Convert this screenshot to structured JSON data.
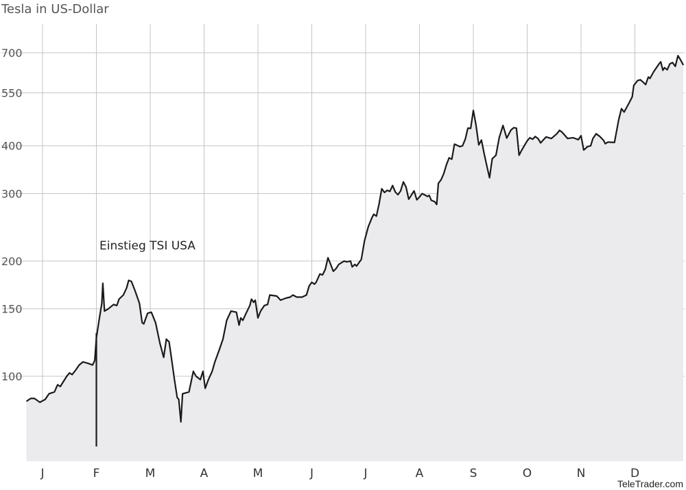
{
  "chart_data": {
    "type": "area",
    "title": "Tesla in US-Dollar",
    "yscale": "log",
    "ylim": [
      65,
      800
    ],
    "xlim": [
      -0.3,
      11.65
    ],
    "grid": true,
    "source": "TeleTrader.com",
    "y_ticks": [
      100,
      150,
      200,
      300,
      400,
      550,
      700
    ],
    "x_ticks": [
      {
        "label": "J",
        "pos": 0
      },
      {
        "label": "F",
        "pos": 1
      },
      {
        "label": "M",
        "pos": 2
      },
      {
        "label": "A",
        "pos": 3
      },
      {
        "label": "M",
        "pos": 4
      },
      {
        "label": "J",
        "pos": 5
      },
      {
        "label": "J",
        "pos": 6
      },
      {
        "label": "A",
        "pos": 7
      },
      {
        "label": "S",
        "pos": 8
      },
      {
        "label": "O",
        "pos": 9
      },
      {
        "label": "N",
        "pos": 10
      },
      {
        "label": "D",
        "pos": 11
      }
    ],
    "series": [
      {
        "name": "",
        "color": "#1a1a1a",
        "fill": "#ebebee",
        "points": [
          [
            -0.3,
            86
          ],
          [
            -0.22,
            87.5
          ],
          [
            -0.15,
            87.5
          ],
          [
            -0.05,
            85.5
          ],
          [
            0.05,
            87
          ],
          [
            0.12,
            90
          ],
          [
            0.22,
            91
          ],
          [
            0.28,
            95
          ],
          [
            0.33,
            94
          ],
          [
            0.45,
            100
          ],
          [
            0.5,
            102
          ],
          [
            0.55,
            101
          ],
          [
            0.62,
            104
          ],
          [
            0.68,
            107
          ],
          [
            0.75,
            109
          ],
          [
            0.85,
            108
          ],
          [
            0.93,
            107
          ],
          [
            0.97,
            110
          ],
          [
            1.0,
            126
          ],
          [
            1.05,
            140
          ],
          [
            1.1,
            155
          ],
          [
            1.12,
            175
          ],
          [
            1.15,
            148
          ],
          [
            1.22,
            150
          ],
          [
            1.32,
            154
          ],
          [
            1.38,
            153
          ],
          [
            1.42,
            159
          ],
          [
            1.5,
            163
          ],
          [
            1.56,
            170
          ],
          [
            1.6,
            178
          ],
          [
            1.65,
            177
          ],
          [
            1.72,
            167
          ],
          [
            1.8,
            155
          ],
          [
            1.85,
            138
          ],
          [
            1.88,
            137
          ],
          [
            1.95,
            146
          ],
          [
            2.02,
            147
          ],
          [
            2.1,
            138
          ],
          [
            2.18,
            122
          ],
          [
            2.25,
            112
          ],
          [
            2.3,
            125
          ],
          [
            2.35,
            123
          ],
          [
            2.4,
            110
          ],
          [
            2.45,
            98
          ],
          [
            2.5,
            88
          ],
          [
            2.53,
            87
          ],
          [
            2.57,
            76
          ],
          [
            2.6,
            90
          ],
          [
            2.72,
            91
          ],
          [
            2.8,
            103
          ],
          [
            2.85,
            100
          ],
          [
            2.93,
            98
          ],
          [
            2.98,
            103
          ],
          [
            3.02,
            93
          ],
          [
            3.08,
            98
          ],
          [
            3.15,
            103
          ],
          [
            3.2,
            109
          ],
          [
            3.28,
            117
          ],
          [
            3.35,
            125
          ],
          [
            3.42,
            140
          ],
          [
            3.5,
            148
          ],
          [
            3.6,
            147
          ],
          [
            3.65,
            136
          ],
          [
            3.68,
            142
          ],
          [
            3.72,
            140
          ],
          [
            3.78,
            146
          ],
          [
            3.85,
            153
          ],
          [
            3.88,
            159
          ],
          [
            3.92,
            156
          ],
          [
            3.95,
            158
          ],
          [
            4.0,
            142
          ],
          [
            4.05,
            148
          ],
          [
            4.12,
            153
          ],
          [
            4.18,
            154
          ],
          [
            4.22,
            163
          ],
          [
            4.35,
            162
          ],
          [
            4.42,
            158
          ],
          [
            4.52,
            160
          ],
          [
            4.6,
            161
          ],
          [
            4.65,
            163
          ],
          [
            4.72,
            161
          ],
          [
            4.82,
            161
          ],
          [
            4.9,
            163
          ],
          [
            4.95,
            172
          ],
          [
            5.0,
            176
          ],
          [
            5.05,
            174
          ],
          [
            5.08,
            176
          ],
          [
            5.15,
            185
          ],
          [
            5.2,
            184
          ],
          [
            5.25,
            190
          ],
          [
            5.3,
            204
          ],
          [
            5.35,
            196
          ],
          [
            5.4,
            188
          ],
          [
            5.45,
            191
          ],
          [
            5.5,
            196
          ],
          [
            5.6,
            200
          ],
          [
            5.65,
            199
          ],
          [
            5.72,
            200
          ],
          [
            5.75,
            193
          ],
          [
            5.8,
            196
          ],
          [
            5.83,
            194
          ],
          [
            5.92,
            202
          ],
          [
            5.98,
            226
          ],
          [
            6.05,
            246
          ],
          [
            6.12,
            260
          ],
          [
            6.15,
            265
          ],
          [
            6.2,
            262
          ],
          [
            6.25,
            282
          ],
          [
            6.3,
            309
          ],
          [
            6.35,
            302
          ],
          [
            6.4,
            306
          ],
          [
            6.45,
            304
          ],
          [
            6.5,
            315
          ],
          [
            6.55,
            303
          ],
          [
            6.6,
            298
          ],
          [
            6.65,
            305
          ],
          [
            6.7,
            322
          ],
          [
            6.75,
            312
          ],
          [
            6.8,
            290
          ],
          [
            6.9,
            305
          ],
          [
            6.95,
            289
          ],
          [
            7.0,
            294
          ],
          [
            7.05,
            300
          ],
          [
            7.15,
            295
          ],
          [
            7.18,
            297
          ],
          [
            7.22,
            288
          ],
          [
            7.28,
            286
          ],
          [
            7.32,
            281
          ],
          [
            7.35,
            319
          ],
          [
            7.4,
            326
          ],
          [
            7.45,
            338
          ],
          [
            7.5,
            357
          ],
          [
            7.55,
            372
          ],
          [
            7.6,
            369
          ],
          [
            7.65,
            404
          ],
          [
            7.75,
            398
          ],
          [
            7.8,
            400
          ],
          [
            7.85,
            416
          ],
          [
            7.9,
            445
          ],
          [
            7.95,
            444
          ],
          [
            8.0,
            495
          ],
          [
            8.05,
            453
          ],
          [
            8.1,
            402
          ],
          [
            8.15,
            414
          ],
          [
            8.2,
            382
          ],
          [
            8.25,
            355
          ],
          [
            8.3,
            330
          ],
          [
            8.35,
            370
          ],
          [
            8.42,
            378
          ],
          [
            8.48,
            420
          ],
          [
            8.55,
            452
          ],
          [
            8.62,
            419
          ],
          [
            8.7,
            440
          ],
          [
            8.75,
            446
          ],
          [
            8.8,
            445
          ],
          [
            8.85,
            378
          ],
          [
            8.9,
            390
          ],
          [
            9.0,
            412
          ],
          [
            9.05,
            420
          ],
          [
            9.1,
            416
          ],
          [
            9.15,
            423
          ],
          [
            9.2,
            418
          ],
          [
            9.25,
            407
          ],
          [
            9.35,
            422
          ],
          [
            9.45,
            418
          ],
          [
            9.55,
            430
          ],
          [
            9.6,
            439
          ],
          [
            9.65,
            434
          ],
          [
            9.75,
            418
          ],
          [
            9.85,
            420
          ],
          [
            9.95,
            415
          ],
          [
            10.0,
            425
          ],
          [
            10.05,
            390
          ],
          [
            10.12,
            398
          ],
          [
            10.18,
            400
          ],
          [
            10.22,
            418
          ],
          [
            10.28,
            430
          ],
          [
            10.35,
            423
          ],
          [
            10.42,
            413
          ],
          [
            10.45,
            405
          ],
          [
            10.5,
            409
          ],
          [
            10.62,
            408
          ],
          [
            10.7,
            468
          ],
          [
            10.75,
            500
          ],
          [
            10.8,
            490
          ],
          [
            10.9,
            520
          ],
          [
            10.95,
            537
          ],
          [
            10.98,
            575
          ],
          [
            11.05,
            592
          ],
          [
            11.1,
            595
          ],
          [
            11.15,
            587
          ],
          [
            11.2,
            578
          ],
          [
            11.25,
            605
          ],
          [
            11.28,
            600
          ],
          [
            11.35,
            625
          ],
          [
            11.4,
            640
          ],
          [
            11.45,
            655
          ],
          [
            11.48,
            663
          ],
          [
            11.52,
            630
          ],
          [
            11.55,
            640
          ],
          [
            11.6,
            632
          ],
          [
            11.65,
            655
          ],
          [
            11.7,
            660
          ],
          [
            11.75,
            645
          ],
          [
            11.8,
            688
          ],
          [
            11.85,
            670
          ],
          [
            11.9,
            650
          ]
        ]
      }
    ],
    "annotations": [
      {
        "text": "Einstieg TSI  USA",
        "x": 1.0,
        "y": 65
      }
    ]
  }
}
